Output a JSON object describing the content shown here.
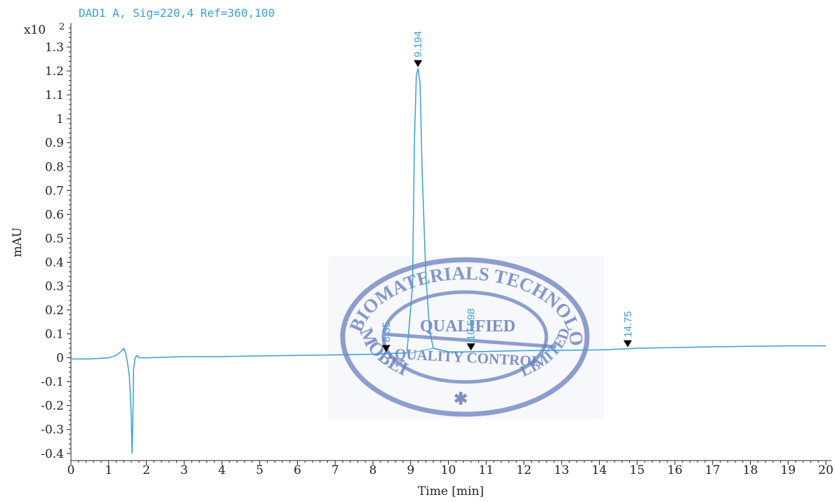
{
  "signal_label": "DAD1 A,  Sig=220,4 Ref=360,100",
  "colors": {
    "trace": "#3a9fd6",
    "marker": "#000000",
    "stamp": "#6a7fbf",
    "axis": "#222222"
  },
  "stamp": {
    "top_arc": "BIOMATERIALS TECHNOLOGY",
    "left_arc": "MOBEI",
    "bottom_arc": "LIMITED",
    "line1": "QUALIFIED",
    "line2": "QUALITY CONTROL",
    "symbol": "✱"
  },
  "chart_data": {
    "type": "line",
    "title": "",
    "xlabel": "Time [min]",
    "ylabel": "mAU",
    "y_scale_label": "x10",
    "y_scale_exponent": "2",
    "xlim": [
      0,
      20
    ],
    "ylim": [
      -0.43,
      1.4
    ],
    "x_ticks": [
      0,
      1,
      2,
      3,
      4,
      5,
      6,
      7,
      8,
      9,
      10,
      11,
      12,
      13,
      14,
      15,
      16,
      17,
      18,
      19,
      20
    ],
    "y_ticks": [
      -0.4,
      -0.3,
      -0.2,
      -0.1,
      0,
      0.1,
      0.2,
      0.3,
      0.4,
      0.5,
      0.6,
      0.7,
      0.8,
      0.9,
      1,
      1.1,
      1.2,
      1.3
    ],
    "y_tick_labels": [
      "-0.4",
      "-0.3",
      "-0.2",
      "-0.1",
      "0",
      "0.1",
      "0.2",
      "0.3",
      "0.4",
      "0.5",
      "0.6",
      "0.7",
      "0.8",
      "0.9",
      "1",
      "1.1",
      "1.2",
      "1.3"
    ],
    "grid": false,
    "series": [
      {
        "x": [
          0,
          0.5,
          1.0,
          1.2,
          1.35,
          1.4,
          1.45,
          1.5,
          1.55,
          1.6,
          1.62,
          1.64,
          1.66,
          1.7,
          1.75,
          1.8,
          2.0,
          3,
          4,
          5,
          6,
          7,
          8,
          8.35,
          8.9,
          9.05,
          9.1,
          9.15,
          9.194,
          9.25,
          9.3,
          9.4,
          9.5,
          9.6,
          10,
          10.598,
          12,
          14,
          14.75,
          15,
          16,
          17,
          18,
          19,
          20
        ],
        "y": [
          -0.005,
          -0.005,
          0.0,
          0.01,
          0.03,
          0.04,
          0.02,
          -0.02,
          -0.08,
          -0.25,
          -0.4,
          -0.28,
          -0.05,
          0.0,
          0.01,
          0.0,
          0.0,
          0.005,
          0.005,
          0.008,
          0.01,
          0.012,
          0.015,
          0.018,
          0.02,
          0.3,
          0.9,
          1.18,
          1.21,
          1.15,
          0.8,
          0.35,
          0.12,
          0.04,
          0.025,
          0.025,
          0.03,
          0.033,
          0.038,
          0.04,
          0.043,
          0.046,
          0.048,
          0.05,
          0.05
        ]
      }
    ],
    "peaks": [
      {
        "time": 8.35,
        "label": "8.35",
        "y": 0.018
      },
      {
        "time": 9.194,
        "label": "9.194",
        "y": 1.21
      },
      {
        "time": 10.598,
        "label": "10.598",
        "y": 0.025
      },
      {
        "time": 14.75,
        "label": "14.75",
        "y": 0.038
      }
    ]
  }
}
